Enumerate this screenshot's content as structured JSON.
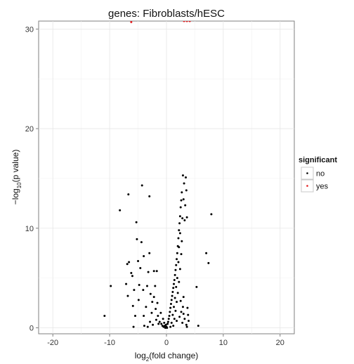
{
  "chart_data": {
    "type": "scatter",
    "title": "genes: Fibroblasts/hESC",
    "xlabel": {
      "prefix": "log",
      "sub": "2",
      "suffix": "(fold change)"
    },
    "ylabel": {
      "prefix": "−log",
      "sub": "10",
      "suffix": "(p value)"
    },
    "xlim": [
      -22.5,
      22.5
    ],
    "ylim": [
      -0.6,
      30.8
    ],
    "x_ticks": [
      -20,
      -10,
      0,
      10,
      20
    ],
    "y_ticks": [
      0,
      10,
      20,
      30
    ],
    "grid": true,
    "legend_position": "right",
    "legend": {
      "title": "significant",
      "entries": [
        {
          "label": "no",
          "color": "#000000"
        },
        {
          "label": "yes",
          "color": "#e41a1c"
        }
      ]
    },
    "series": [
      {
        "name": "yes",
        "color": "#e41a1c",
        "points": [
          {
            "x": -6.2,
            "y": 30.7
          },
          {
            "x": 3.1,
            "y": 30.8
          },
          {
            "x": 3.6,
            "y": 30.8
          },
          {
            "x": 4.1,
            "y": 30.8
          }
        ]
      },
      {
        "name": "no",
        "color": "#000000",
        "points": [
          {
            "x": -10.9,
            "y": 1.2
          },
          {
            "x": -9.8,
            "y": 4.2
          },
          {
            "x": -8.2,
            "y": 11.8
          },
          {
            "x": -6.7,
            "y": 13.4
          },
          {
            "x": -6.6,
            "y": 6.6
          },
          {
            "x": -6.9,
            "y": 6.4
          },
          {
            "x": -6.2,
            "y": 5.5
          },
          {
            "x": -6.0,
            "y": 5.2
          },
          {
            "x": -7.1,
            "y": 4.4
          },
          {
            "x": -6.8,
            "y": 3.2
          },
          {
            "x": -5.7,
            "y": 3.8
          },
          {
            "x": -5.9,
            "y": 2.2
          },
          {
            "x": -5.5,
            "y": 1.2
          },
          {
            "x": -5.8,
            "y": 0.1
          },
          {
            "x": -5.3,
            "y": 10.6
          },
          {
            "x": -5.2,
            "y": 8.9
          },
          {
            "x": -5.0,
            "y": 6.7
          },
          {
            "x": -4.8,
            "y": 4.3
          },
          {
            "x": -4.9,
            "y": 2.8
          },
          {
            "x": -4.3,
            "y": 14.3
          },
          {
            "x": -4.4,
            "y": 8.6
          },
          {
            "x": -4.0,
            "y": 7.2
          },
          {
            "x": -4.6,
            "y": 6.0
          },
          {
            "x": -4.1,
            "y": 3.8
          },
          {
            "x": -3.6,
            "y": 2.1
          },
          {
            "x": -4.0,
            "y": 1.2
          },
          {
            "x": -3.9,
            "y": 0.2
          },
          {
            "x": -3.0,
            "y": 13.2
          },
          {
            "x": -3.0,
            "y": 7.5
          },
          {
            "x": -3.2,
            "y": 5.6
          },
          {
            "x": -3.4,
            "y": 4.2
          },
          {
            "x": -2.8,
            "y": 3.4
          },
          {
            "x": -2.5,
            "y": 2.6
          },
          {
            "x": -2.6,
            "y": 1.5
          },
          {
            "x": -2.9,
            "y": 0.6
          },
          {
            "x": -3.3,
            "y": 0.1
          },
          {
            "x": -2.2,
            "y": 5.7
          },
          {
            "x": -1.7,
            "y": 5.7
          },
          {
            "x": -2.0,
            "y": 4.2
          },
          {
            "x": -2.2,
            "y": 3.1
          },
          {
            "x": -1.6,
            "y": 2.5
          },
          {
            "x": -1.9,
            "y": 1.9
          },
          {
            "x": -1.5,
            "y": 1.2
          },
          {
            "x": -1.8,
            "y": 0.8
          },
          {
            "x": -1.4,
            "y": 0.4
          },
          {
            "x": -2.4,
            "y": 0.3
          },
          {
            "x": -1.2,
            "y": 0.6
          },
          {
            "x": -1.0,
            "y": 1.5
          },
          {
            "x": -0.9,
            "y": 0.4
          },
          {
            "x": -0.7,
            "y": 0.2
          },
          {
            "x": -0.6,
            "y": 0.9
          },
          {
            "x": -0.5,
            "y": 0.1
          },
          {
            "x": -0.4,
            "y": 0.5
          },
          {
            "x": -0.3,
            "y": 0.2
          },
          {
            "x": -0.2,
            "y": 0.0
          },
          {
            "x": -0.1,
            "y": 0.3
          },
          {
            "x": 0.0,
            "y": 0.1
          },
          {
            "x": 0.1,
            "y": 0.0
          },
          {
            "x": 0.2,
            "y": 0.4
          },
          {
            "x": 0.3,
            "y": 0.6
          },
          {
            "x": 0.4,
            "y": 0.9
          },
          {
            "x": 0.5,
            "y": 1.2
          },
          {
            "x": 0.6,
            "y": 1.6
          },
          {
            "x": 0.7,
            "y": 2.0
          },
          {
            "x": 0.8,
            "y": 2.4
          },
          {
            "x": 0.9,
            "y": 2.8
          },
          {
            "x": 1.0,
            "y": 3.2
          },
          {
            "x": 1.1,
            "y": 3.6
          },
          {
            "x": 1.2,
            "y": 4.0
          },
          {
            "x": 1.3,
            "y": 4.4
          },
          {
            "x": 1.4,
            "y": 4.8
          },
          {
            "x": 1.5,
            "y": 5.3
          },
          {
            "x": 1.6,
            "y": 5.8
          },
          {
            "x": 1.7,
            "y": 6.3
          },
          {
            "x": 1.8,
            "y": 6.9
          },
          {
            "x": 1.9,
            "y": 7.5
          },
          {
            "x": 2.0,
            "y": 8.2
          },
          {
            "x": 2.1,
            "y": 9.0
          },
          {
            "x": 2.2,
            "y": 9.8
          },
          {
            "x": 2.3,
            "y": 10.5
          },
          {
            "x": 2.4,
            "y": 11.2
          },
          {
            "x": 2.5,
            "y": 12.1
          },
          {
            "x": 2.6,
            "y": 12.8
          },
          {
            "x": 2.7,
            "y": 13.6
          },
          {
            "x": 2.9,
            "y": 15.3
          },
          {
            "x": 3.4,
            "y": 15.1
          },
          {
            "x": 3.1,
            "y": 14.5
          },
          {
            "x": 3.5,
            "y": 13.8
          },
          {
            "x": 3.0,
            "y": 12.9
          },
          {
            "x": 3.3,
            "y": 12.3
          },
          {
            "x": 2.8,
            "y": 11.0
          },
          {
            "x": 3.2,
            "y": 10.8
          },
          {
            "x": 3.6,
            "y": 11.1
          },
          {
            "x": 2.4,
            "y": 9.5
          },
          {
            "x": 2.7,
            "y": 8.7
          },
          {
            "x": 2.2,
            "y": 8.1
          },
          {
            "x": 2.6,
            "y": 7.4
          },
          {
            "x": 2.1,
            "y": 6.6
          },
          {
            "x": 2.4,
            "y": 5.9
          },
          {
            "x": 1.9,
            "y": 5.0
          },
          {
            "x": 2.2,
            "y": 4.6
          },
          {
            "x": 1.7,
            "y": 4.1
          },
          {
            "x": 2.0,
            "y": 3.5
          },
          {
            "x": 1.5,
            "y": 3.0
          },
          {
            "x": 1.8,
            "y": 2.6
          },
          {
            "x": 1.3,
            "y": 2.1
          },
          {
            "x": 1.6,
            "y": 1.7
          },
          {
            "x": 1.1,
            "y": 1.3
          },
          {
            "x": 1.4,
            "y": 0.9
          },
          {
            "x": 0.9,
            "y": 0.5
          },
          {
            "x": 1.2,
            "y": 0.2
          },
          {
            "x": 0.7,
            "y": 0.1
          },
          {
            "x": 1.8,
            "y": 0.7
          },
          {
            "x": 2.3,
            "y": 1.1
          },
          {
            "x": 2.6,
            "y": 1.6
          },
          {
            "x": 2.9,
            "y": 2.1
          },
          {
            "x": 3.0,
            "y": 1.4
          },
          {
            "x": 2.8,
            "y": 0.5
          },
          {
            "x": 3.2,
            "y": 0.9
          },
          {
            "x": 3.5,
            "y": 0.3
          },
          {
            "x": 3.8,
            "y": 1.3
          },
          {
            "x": 3.9,
            "y": 0.7
          },
          {
            "x": 3.7,
            "y": 2.0
          },
          {
            "x": 3.6,
            "y": 0.1
          },
          {
            "x": 3.0,
            "y": 3.1
          },
          {
            "x": 2.5,
            "y": 2.7
          },
          {
            "x": 5.3,
            "y": 4.1
          },
          {
            "x": 5.6,
            "y": 0.2
          },
          {
            "x": 7.0,
            "y": 7.5
          },
          {
            "x": 7.4,
            "y": 6.5
          },
          {
            "x": 7.9,
            "y": 11.4
          }
        ]
      }
    ]
  }
}
